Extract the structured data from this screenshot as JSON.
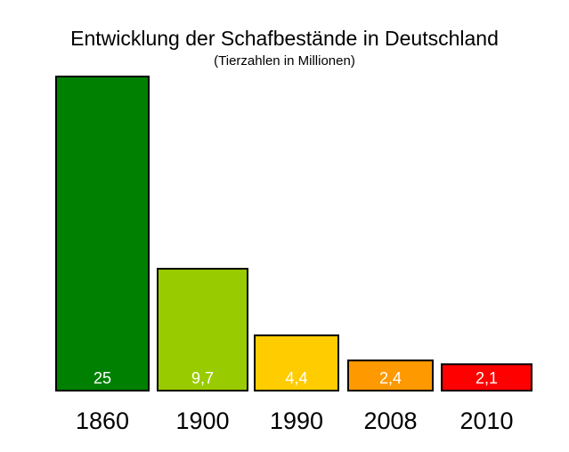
{
  "chart_data": {
    "type": "bar",
    "title": "Entwicklung der Schafbestände in Deutschland",
    "subtitle": "(Tierzahlen in Millionen)",
    "xlabel": "",
    "ylabel": "",
    "categories": [
      "1860",
      "1900",
      "1990",
      "2008",
      "2010"
    ],
    "values": [
      25,
      9.7,
      4.4,
      2.4,
      2.1
    ],
    "value_labels": [
      "25",
      "9,7",
      "4,4",
      "2,4",
      "2,1"
    ],
    "colors": [
      "#008000",
      "#99cc00",
      "#ffcc00",
      "#ff9900",
      "#ff0000"
    ],
    "ylim": [
      0,
      25
    ],
    "grid": false,
    "legend": "none"
  }
}
